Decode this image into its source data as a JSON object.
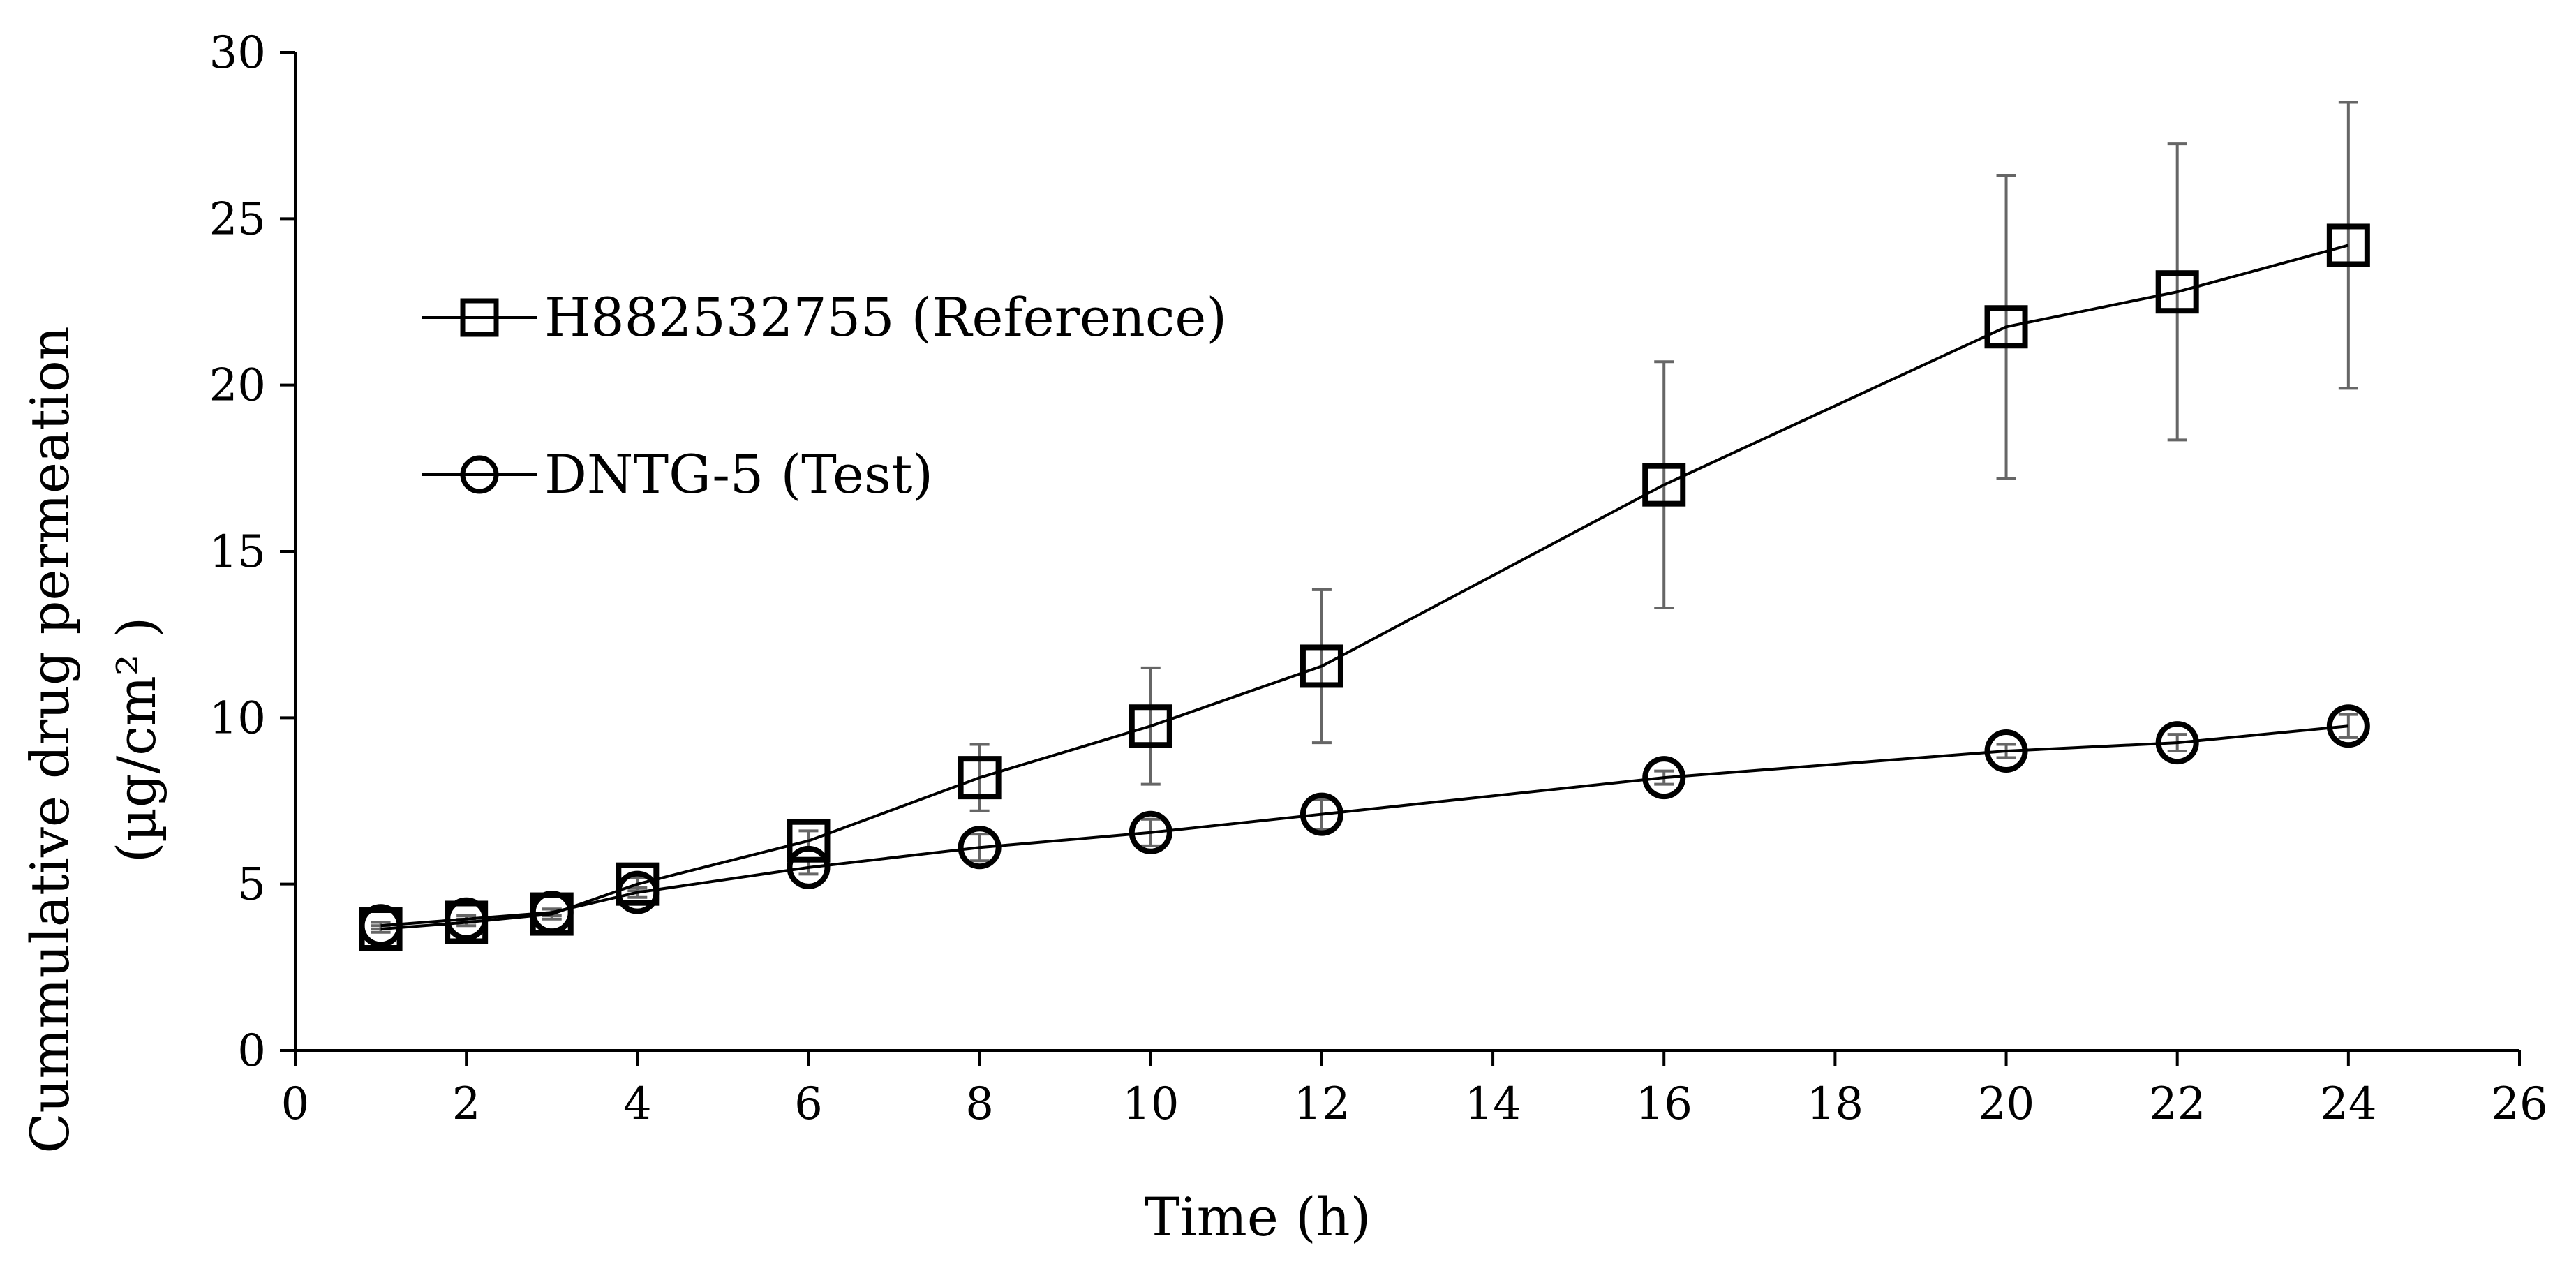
{
  "chart_data": {
    "type": "line",
    "title": "",
    "xlabel": "Time (h)",
    "ylabel": "Cummulative drug permeation",
    "ylabel_line2": "(µg/cm² )",
    "xlim": [
      0,
      26
    ],
    "ylim": [
      0,
      30
    ],
    "xticks": [
      0,
      2,
      4,
      6,
      8,
      10,
      12,
      14,
      16,
      18,
      20,
      22,
      24,
      26
    ],
    "yticks": [
      0,
      5,
      10,
      15,
      20,
      25,
      30
    ],
    "grid": false,
    "legend_position": "top-left",
    "series": [
      {
        "name": "H882532755 (Reference)",
        "marker": "square",
        "x": [
          1,
          2,
          3,
          4,
          6,
          8,
          10,
          12,
          16,
          20,
          22,
          24
        ],
        "y": [
          3.65,
          3.85,
          4.1,
          5.0,
          6.3,
          8.2,
          9.75,
          11.55,
          17.0,
          21.75,
          22.8,
          24.2
        ],
        "err": [
          0.1,
          0.1,
          0.15,
          0.2,
          0.3,
          1.0,
          1.75,
          2.3,
          3.7,
          4.55,
          4.45,
          4.3
        ]
      },
      {
        "name": "DNTG-5 (Test)",
        "marker": "circle",
        "x": [
          1,
          2,
          3,
          4,
          6,
          8,
          10,
          12,
          16,
          20,
          22,
          24
        ],
        "y": [
          3.75,
          3.95,
          4.15,
          4.75,
          5.5,
          6.1,
          6.55,
          7.1,
          8.2,
          9.0,
          9.25,
          9.75
        ],
        "err": [
          0.1,
          0.1,
          0.1,
          0.15,
          0.2,
          0.4,
          0.4,
          0.45,
          0.2,
          0.2,
          0.25,
          0.35
        ]
      }
    ]
  }
}
